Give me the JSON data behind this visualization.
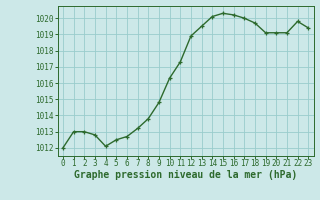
{
  "x": [
    0,
    1,
    2,
    3,
    4,
    5,
    6,
    7,
    8,
    9,
    10,
    11,
    12,
    13,
    14,
    15,
    16,
    17,
    18,
    19,
    20,
    21,
    22,
    23
  ],
  "y": [
    1012.0,
    1013.0,
    1013.0,
    1012.8,
    1012.1,
    1012.5,
    1012.7,
    1013.2,
    1013.8,
    1014.8,
    1016.3,
    1017.3,
    1018.9,
    1019.5,
    1020.1,
    1020.3,
    1020.2,
    1020.0,
    1019.7,
    1019.1,
    1019.1,
    1019.1,
    1019.8,
    1019.4
  ],
  "line_color": "#2d6a2d",
  "marker": "+",
  "bg_color": "#cce8e8",
  "grid_color": "#99cccc",
  "xlabel": "Graphe pression niveau de la mer (hPa)",
  "xlabel_color": "#2d6a2d",
  "tick_color": "#2d6a2d",
  "spine_color": "#2d6a2d",
  "ylim": [
    1011.5,
    1020.75
  ],
  "xlim": [
    -0.5,
    23.5
  ],
  "yticks": [
    1012,
    1013,
    1014,
    1015,
    1016,
    1017,
    1018,
    1019,
    1020
  ],
  "ytick_labels": [
    "1012",
    "1013",
    "1014",
    "1015",
    "1016",
    "1017",
    "1018",
    "1019",
    "1020"
  ],
  "xtick_positions": [
    0,
    1,
    2,
    3,
    4,
    5,
    6,
    7,
    8,
    9,
    10,
    11,
    12,
    13,
    14,
    15,
    16,
    17,
    18,
    19,
    20,
    21,
    22,
    23
  ],
  "xtick_labels": [
    "0",
    "1",
    "2",
    "3",
    "4",
    "5",
    "6",
    "7",
    "8",
    "9",
    "10",
    "11",
    "12",
    "13",
    "14",
    "15",
    "16",
    "17",
    "18",
    "19",
    "20",
    "21",
    "22",
    "23"
  ],
  "title_fontsize": 7,
  "tick_fontsize": 5.5,
  "line_width": 1.0,
  "marker_size": 3.5,
  "marker_ew": 0.9
}
